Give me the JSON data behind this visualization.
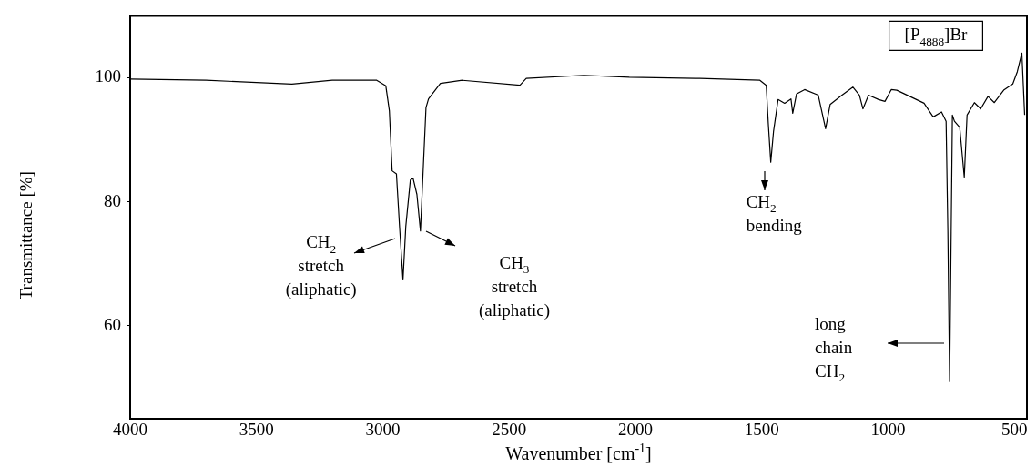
{
  "chart_data": {
    "type": "line",
    "title": "[P$_{4888}$]Br",
    "xlabel": "Wavenumber [cm$^{-1}$]",
    "ylabel": "Transmittance [%]",
    "xlim": [
      4000,
      450
    ],
    "ylim": [
      45,
      110
    ],
    "xticks": [
      4000,
      3500,
      3000,
      2500,
      2000,
      1500,
      1000,
      500
    ],
    "yticks": [
      100,
      80,
      60
    ],
    "grid": false,
    "legend": false,
    "marker": "none",
    "line_style": "solid",
    "series": [
      {
        "color": "#000000",
        "x": [
          4000,
          3700,
          3360,
          3200,
          3024,
          2988,
          2974,
          2963,
          2946,
          2934,
          2920,
          2909,
          2891,
          2880,
          2865,
          2851,
          2844,
          2829,
          2819,
          2772,
          2685,
          2457,
          2432,
          2204,
          2024,
          1745,
          1507,
          1482,
          1474,
          1464,
          1453,
          1435,
          1409,
          1384,
          1377,
          1362,
          1330,
          1276,
          1247,
          1229,
          1182,
          1139,
          1113,
          1099,
          1077,
          1037,
          1012,
          987,
          965,
          893,
          857,
          821,
          788,
          770,
          763,
          756,
          745,
          737,
          716,
          698,
          687,
          658,
          633,
          604,
          579,
          542,
          506,
          488,
          470,
          459
        ],
        "values": [
          99.8,
          99.6,
          99,
          99.6,
          99.6,
          98.7,
          94.7,
          85,
          84.5,
          76.2,
          67.4,
          76,
          83.5,
          83.8,
          81.2,
          75.3,
          81.6,
          95.2,
          96.6,
          99.1,
          99.6,
          98.8,
          99.9,
          100.4,
          100.1,
          99.9,
          99.6,
          98.8,
          92.8,
          86.4,
          91.4,
          96.5,
          95.9,
          96.6,
          94.3,
          97.4,
          98.1,
          97.2,
          91.8,
          95.7,
          97.2,
          98.5,
          97.2,
          95,
          97.2,
          96.5,
          96.2,
          98.1,
          98,
          96.6,
          95.9,
          93.7,
          94.5,
          93,
          75.3,
          51,
          94,
          93,
          92,
          84,
          94,
          96,
          95,
          97,
          96,
          98,
          99,
          101,
          104,
          94
        ]
      }
    ],
    "annotations": [
      {
        "text": "CH$_{2}$\nstretch\n(aliphatic)",
        "x": 2920,
        "y": 67.4
      },
      "CH$_{3}$\nstretch\n(aliphatic)",
      {
        "text": "CH$_{2}$\nbending",
        "x": 1464,
        "y": 86.4
      },
      "long\nchain\nCH$_{2}$"
    ]
  }
}
